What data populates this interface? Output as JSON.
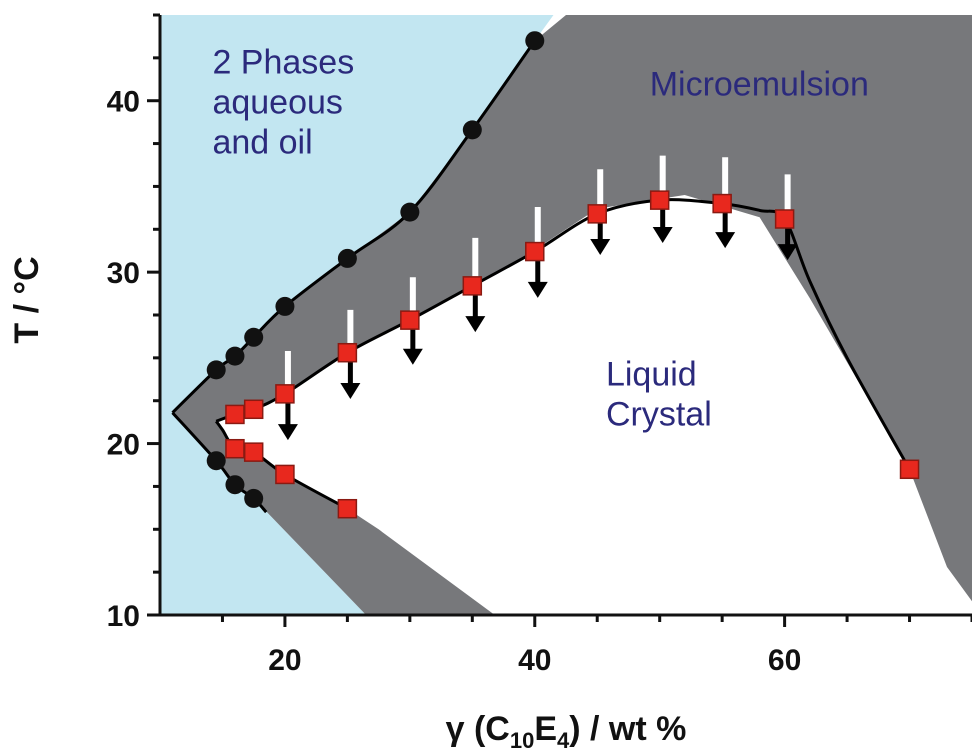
{
  "chart_data": {
    "type": "scatter",
    "xlabel_prefix": "γ (C",
    "xlabel_sub1": "10",
    "xlabel_mid": "E",
    "xlabel_sub2": "4",
    "xlabel_suffix": ") / wt %",
    "ylabel": "T / °C",
    "xlim": [
      10,
      75
    ],
    "ylim": [
      10,
      45
    ],
    "x_ticks": [
      20,
      40,
      60
    ],
    "y_ticks": [
      10,
      20,
      30,
      40
    ],
    "grid": false,
    "colors": {
      "two_phase": "#c2e6f1",
      "microemulsion": "#77787b",
      "liquid_crystal": "#ffffff",
      "circle_marker": "#111111",
      "square_marker": "#e8281e",
      "square_edge": "#8a1a12",
      "arrow": "#000000",
      "arrow_tail": "#ffffff",
      "region_text": "#2b2a7c"
    },
    "region_labels": [
      {
        "lines": [
          "2 Phases",
          "aqueous",
          "and oil"
        ],
        "at": [
          14.2,
          41.6
        ]
      },
      {
        "lines": [
          "Microemulsion"
        ],
        "at": [
          49.2,
          40.3
        ]
      },
      {
        "lines": [
          "Liquid",
          "Crystal"
        ],
        "at": [
          45.7,
          23.4
        ]
      }
    ],
    "regions": {
      "two_phase": [
        [
          10,
          45
        ],
        [
          41.5,
          45
        ],
        [
          40,
          43.5
        ],
        [
          35,
          38.3
        ],
        [
          30,
          33.5
        ],
        [
          25,
          30.8
        ],
        [
          20,
          28
        ],
        [
          17.5,
          26.2
        ],
        [
          16,
          25.1
        ],
        [
          14.5,
          24.3
        ],
        [
          11,
          21.8
        ],
        [
          14.5,
          19
        ],
        [
          16,
          17.6
        ],
        [
          17.5,
          16.8
        ],
        [
          26.5,
          10
        ],
        [
          10,
          10
        ]
      ],
      "microemulsion": [
        [
          42.5,
          45
        ],
        [
          75,
          45
        ],
        [
          75,
          10.8
        ],
        [
          73,
          12.8
        ],
        [
          70,
          18.5
        ],
        [
          62,
          28.5
        ],
        [
          58,
          33.2
        ],
        [
          52,
          34.5
        ],
        [
          45,
          33.7
        ],
        [
          40,
          31.3
        ],
        [
          35,
          29.2
        ],
        [
          30,
          27.2
        ],
        [
          25,
          25.3
        ],
        [
          20,
          22.9
        ],
        [
          17.5,
          22.0
        ],
        [
          16,
          21.7
        ],
        [
          14.5,
          21.3
        ],
        [
          15.5,
          20.2
        ],
        [
          17.5,
          19.6
        ],
        [
          20,
          18.2
        ],
        [
          25,
          16.2
        ],
        [
          27.5,
          15.0
        ],
        [
          36.8,
          10
        ],
        [
          26.5,
          10
        ],
        [
          17.5,
          16.8
        ],
        [
          16,
          17.6
        ],
        [
          14.5,
          19
        ],
        [
          11,
          21.8
        ],
        [
          14.5,
          24.3
        ],
        [
          16,
          25.1
        ],
        [
          17.5,
          26.2
        ],
        [
          20,
          28
        ],
        [
          25,
          30.8
        ],
        [
          30,
          33.5
        ],
        [
          35,
          38.3
        ],
        [
          40,
          43.5
        ]
      ]
    },
    "series": [
      {
        "marker": "circle",
        "curve": [
          [
            11,
            21.8
          ],
          [
            14.5,
            24.3
          ],
          [
            16,
            25.1
          ],
          [
            17.5,
            26.2
          ],
          [
            20,
            28
          ],
          [
            25,
            30.8
          ],
          [
            30,
            33.5
          ],
          [
            35,
            38.3
          ],
          [
            40,
            43.5
          ]
        ],
        "x": [
          14.5,
          16,
          17.5,
          20,
          25,
          30,
          35,
          40
        ],
        "y": [
          24.3,
          25.1,
          26.2,
          28,
          30.8,
          33.5,
          38.3,
          43.5
        ]
      },
      {
        "marker": "circle",
        "curve": [
          [
            11,
            21.8
          ],
          [
            14.5,
            19
          ],
          [
            16,
            17.6
          ],
          [
            17.5,
            16.8
          ],
          [
            18.5,
            16
          ]
        ],
        "x": [
          14.5,
          16,
          17.5
        ],
        "y": [
          19,
          17.6,
          16.8
        ]
      },
      {
        "marker": "square",
        "curve": [
          [
            14.5,
            21.3
          ],
          [
            16,
            21.7
          ],
          [
            17.5,
            22.0
          ],
          [
            20,
            22.9
          ],
          [
            25,
            25.3
          ],
          [
            30,
            27.2
          ],
          [
            35,
            29.2
          ],
          [
            40,
            31.2
          ],
          [
            45,
            33.4
          ],
          [
            50,
            34.2
          ],
          [
            55,
            34.0
          ],
          [
            58,
            33.6
          ],
          [
            60,
            33.1
          ],
          [
            62,
            29.5
          ],
          [
            65,
            25
          ],
          [
            70,
            18.5
          ]
        ],
        "x": [
          16,
          17.5,
          20,
          25,
          30,
          35,
          40,
          45,
          50,
          55,
          60
        ],
        "y": [
          21.7,
          22.0,
          22.9,
          25.3,
          27.2,
          29.2,
          31.2,
          33.4,
          34.2,
          34.0,
          33.1
        ]
      },
      {
        "marker": "square",
        "curve": [
          [
            14.5,
            21.3
          ],
          [
            15,
            20.8
          ],
          [
            16,
            19.7
          ],
          [
            17.5,
            19.5
          ],
          [
            20,
            18.2
          ],
          [
            25,
            16.2
          ]
        ],
        "x": [
          16,
          17.5,
          20,
          25
        ],
        "y": [
          19.7,
          19.5,
          18.2,
          16.2
        ]
      },
      {
        "marker": "square",
        "x": [
          70
        ],
        "y": [
          18.5
        ]
      }
    ],
    "arrows": {
      "x": [
        20,
        25,
        30,
        35,
        40,
        45,
        50,
        55,
        60
      ],
      "from_y": [
        25.4,
        27.8,
        29.7,
        32.0,
        33.8,
        36.0,
        36.8,
        36.7,
        35.7
      ],
      "to_y": [
        20.2,
        22.6,
        24.6,
        26.5,
        28.5,
        31.0,
        31.7,
        31.4,
        30.7
      ]
    }
  }
}
